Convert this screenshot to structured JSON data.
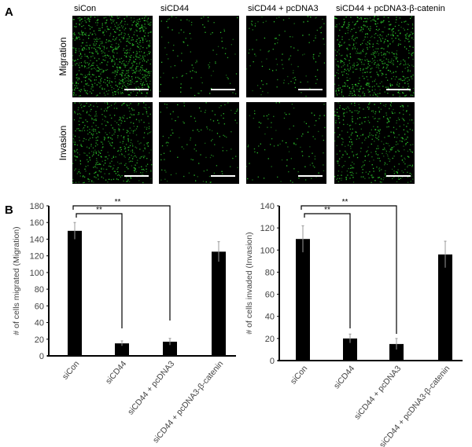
{
  "panel_labels": {
    "a": "A",
    "b": "B"
  },
  "micrographs": {
    "columns": [
      "siCon",
      "siCD44",
      "siCD44 + pcDNA3",
      "siCD44 + pcDNA3-β-catenin"
    ],
    "rows": [
      "Migration",
      "Invasion"
    ],
    "cell_density": [
      [
        1.0,
        0.12,
        0.14,
        0.75
      ],
      [
        0.6,
        0.14,
        0.12,
        0.5
      ]
    ],
    "stain_color": "#2fd12f",
    "background_color": "#000000",
    "scale_bar_color": "#ffffff"
  },
  "chart_data": [
    {
      "type": "bar",
      "categories": [
        "siCon",
        "siCD44",
        "siCD44 + pcDNA3",
        "siCD44 + pcDNA3-β-catenin"
      ],
      "values": [
        150,
        15,
        17,
        125
      ],
      "errors": [
        10,
        3,
        4,
        12
      ],
      "ylabel": "# of cells migrated (Migration)",
      "ylim": [
        0,
        180
      ],
      "yticks": [
        0,
        20,
        40,
        60,
        80,
        100,
        120,
        140,
        160,
        180
      ],
      "bar_color": "#000000",
      "grid": false,
      "significance": [
        {
          "from": 0,
          "to": 1,
          "label": "**"
        },
        {
          "from": 0,
          "to": 2,
          "label": "**"
        }
      ]
    },
    {
      "type": "bar",
      "categories": [
        "siCon",
        "siCD44",
        "siCD44 + pcDNA3",
        "siCD44 + pcDNA3-β-catenin"
      ],
      "values": [
        110,
        20,
        15,
        96
      ],
      "errors": [
        12,
        4,
        5,
        12
      ],
      "ylabel": "# of cells invaded (Invasion)",
      "ylim": [
        0,
        140
      ],
      "yticks": [
        0,
        20,
        40,
        60,
        80,
        100,
        120,
        140
      ],
      "bar_color": "#000000",
      "grid": false,
      "significance": [
        {
          "from": 0,
          "to": 1,
          "label": "**"
        },
        {
          "from": 0,
          "to": 2,
          "label": "**"
        }
      ]
    }
  ]
}
